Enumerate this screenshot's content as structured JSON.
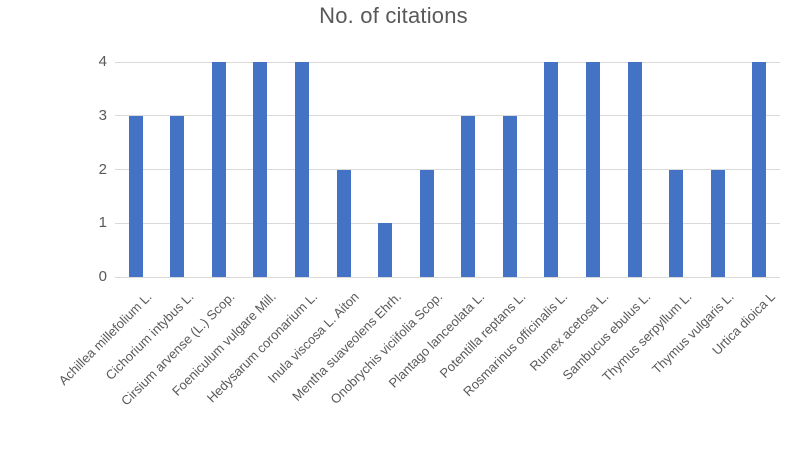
{
  "chart_data": {
    "type": "bar",
    "title": "No. of citations",
    "categories": [
      "Achillea millefolium L.",
      "Cichorium intybus L.",
      "Cirsium arvense (L.) Scop.",
      "Foeniculum vulgare Mill.",
      "Hedysarum coronarium L.",
      "Inula viscosa L. Aiton",
      "Mentha suaveolens Ehrh.",
      "Onobrychis viciifolia Scop.",
      "Plantago lanceolata L.",
      "Potentilla reptans L.",
      "Rosmarinus officinalis L.",
      "Rumex acetosa L.",
      "Sambucus ebulus L.",
      "Thymus serpyllum L.",
      "Thymus vulgaris L.",
      "Urtica dioica L"
    ],
    "values": [
      3,
      3,
      4,
      4,
      4,
      2,
      1,
      2,
      3,
      3,
      4,
      4,
      4,
      2,
      2,
      4
    ],
    "xlabel": "",
    "ylabel": "",
    "ylim": [
      0,
      4
    ],
    "yticks": [
      0,
      1,
      2,
      3,
      4
    ],
    "grid": "horizontal",
    "legend": "none",
    "bar_color": "#4472C4",
    "text_color": "#595959",
    "gridline_color": "#D9D9D9"
  }
}
